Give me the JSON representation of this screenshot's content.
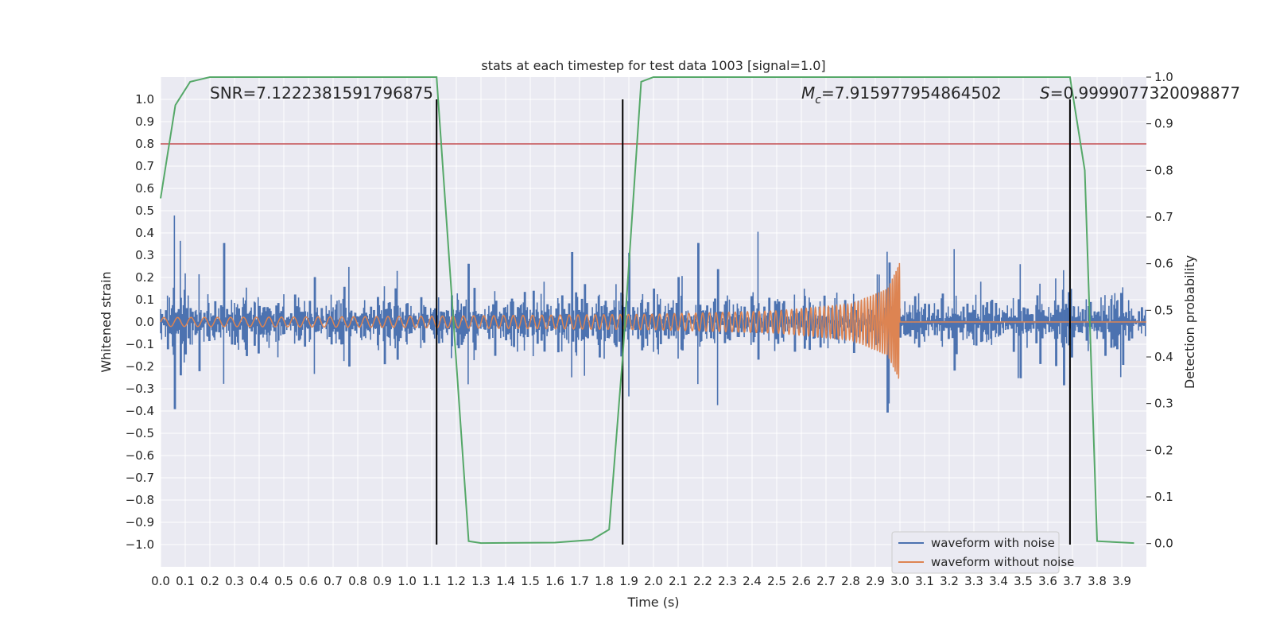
{
  "chart_data": {
    "type": "line",
    "title": "stats at each timestep for test data 1003 [signal=1.0]",
    "xlabel": "Time (s)",
    "ylabel": "Whitened strain",
    "y2label": "Detection probability",
    "xlim": [
      0.0,
      4.0
    ],
    "ylim": [
      -1.1,
      1.1
    ],
    "y2lim": [
      -0.05,
      1.0
    ],
    "x_ticks": [
      0.0,
      0.1,
      0.2,
      0.3,
      0.4,
      0.5,
      0.6,
      0.7,
      0.8,
      0.9,
      1.0,
      1.1,
      1.2,
      1.3,
      1.4,
      1.5,
      1.6,
      1.7,
      1.8,
      1.9,
      2.0,
      2.1,
      2.2,
      2.3,
      2.4,
      2.5,
      2.6,
      2.7,
      2.8,
      2.9,
      3.0,
      3.1,
      3.2,
      3.3,
      3.4,
      3.5,
      3.6,
      3.7,
      3.8,
      3.9
    ],
    "x_tick_labels": [
      "0.0",
      "0.1",
      "0.2",
      "0.3",
      "0.4",
      "0.5",
      "0.6",
      "0.7",
      "0.8",
      "0.9",
      "1.0",
      "1.1",
      "1.2",
      "1.3",
      "1.4",
      "1.5",
      "1.6",
      "1.7",
      "1.8",
      "1.9",
      "2.0",
      "2.1",
      "2.2",
      "2.3",
      "2.4",
      "2.5",
      "2.6",
      "2.7",
      "2.8",
      "2.9",
      "3.0",
      "3.1",
      "3.2",
      "3.3",
      "3.4",
      "3.5",
      "3.6",
      "3.7",
      "3.8",
      "3.9"
    ],
    "y_ticks": [
      1.0,
      0.9,
      0.8,
      0.7,
      0.6,
      0.5,
      0.4,
      0.3,
      0.2,
      0.1,
      0.0,
      -0.1,
      -0.2,
      -0.3,
      -0.4,
      -0.5,
      -0.6,
      -0.7,
      -0.8,
      -0.9,
      -1.0
    ],
    "y_tick_labels": [
      "1.0",
      "0.9",
      "0.8",
      "0.7",
      "0.6",
      "0.5",
      "0.4",
      "0.3",
      "0.2",
      "0.1",
      "0.0",
      "−0.1",
      "−0.2",
      "−0.3",
      "−0.4",
      "−0.5",
      "−0.6",
      "−0.7",
      "−0.8",
      "−0.9",
      "−1.0"
    ],
    "y2_ticks": [
      1.0,
      0.9,
      0.8,
      0.7,
      0.6,
      0.5,
      0.4,
      0.3,
      0.2,
      0.1,
      0.0
    ],
    "y2_tick_labels": [
      "1.0",
      "0.9",
      "0.8",
      "0.7",
      "0.6",
      "0.5",
      "0.4",
      "0.3",
      "0.2",
      "0.1",
      "0.0"
    ],
    "annotations": {
      "snr": {
        "text": "SNR=7.122238159179687 5",
        "label": "SNR=7.1222381591796875",
        "x": 0.2
      },
      "mc": {
        "symbol": "M",
        "subscript": "c",
        "value": "=7.915977954864502",
        "x": 2.6
      },
      "s": {
        "symbol": "S",
        "value": "=0.9999077320098877",
        "x": 3.6
      }
    },
    "threshold": {
      "value": 0.8,
      "axis": "left",
      "color": "#c44e52"
    },
    "vlines": [
      1.12,
      1.875,
      3.69
    ],
    "vline_color": "#000000",
    "noise_series": {
      "name": "waveform with noise",
      "color": "#4c72b0"
    },
    "clean_series": {
      "name": "waveform without noise",
      "color": "#dd8452",
      "end": 3.0,
      "points": [
        [
          0.0,
          0.02
        ],
        [
          0.5,
          0.022
        ],
        [
          1.0,
          0.025
        ],
        [
          1.5,
          0.03
        ],
        [
          2.0,
          0.035
        ],
        [
          2.5,
          0.05
        ],
        [
          2.8,
          0.08
        ],
        [
          2.95,
          0.15
        ],
        [
          3.0,
          0.27
        ]
      ]
    },
    "detection_series": {
      "name": "Detection probability",
      "color": "#55a868",
      "x": [
        0.0,
        0.06,
        0.12,
        0.2,
        1.12,
        1.25,
        1.3,
        1.6,
        1.75,
        1.82,
        1.875,
        1.95,
        2.0,
        3.69,
        3.75,
        3.8,
        3.95
      ],
      "y": [
        0.74,
        0.94,
        0.99,
        1.0,
        1.0,
        0.005,
        0.001,
        0.002,
        0.008,
        0.03,
        0.4,
        0.99,
        1.0,
        1.0,
        0.8,
        0.005,
        0.001
      ]
    },
    "legend": {
      "placement": "lower-right"
    },
    "grid": true
  }
}
